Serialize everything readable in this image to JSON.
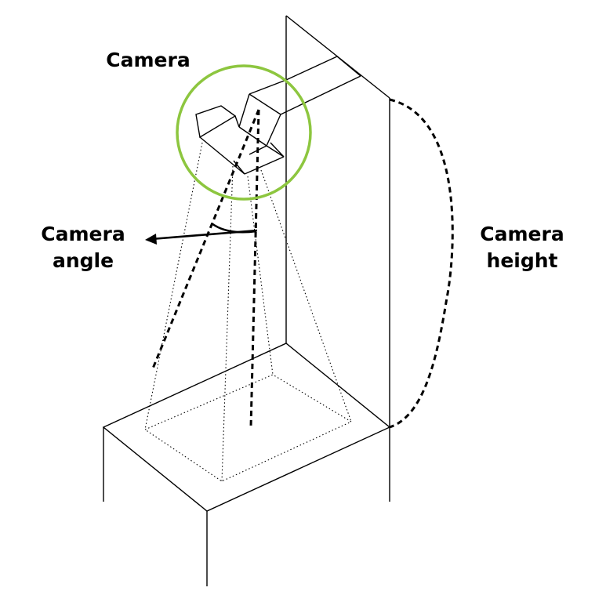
{
  "labels": {
    "camera": "Camera",
    "camera_angle_line1": "Camera",
    "camera_angle_line2": "angle",
    "camera_height_line1": "Camera",
    "camera_height_line2": "height"
  },
  "colors": {
    "highlight": "#8dc63f",
    "line": "#000000",
    "background": "#ffffff"
  }
}
